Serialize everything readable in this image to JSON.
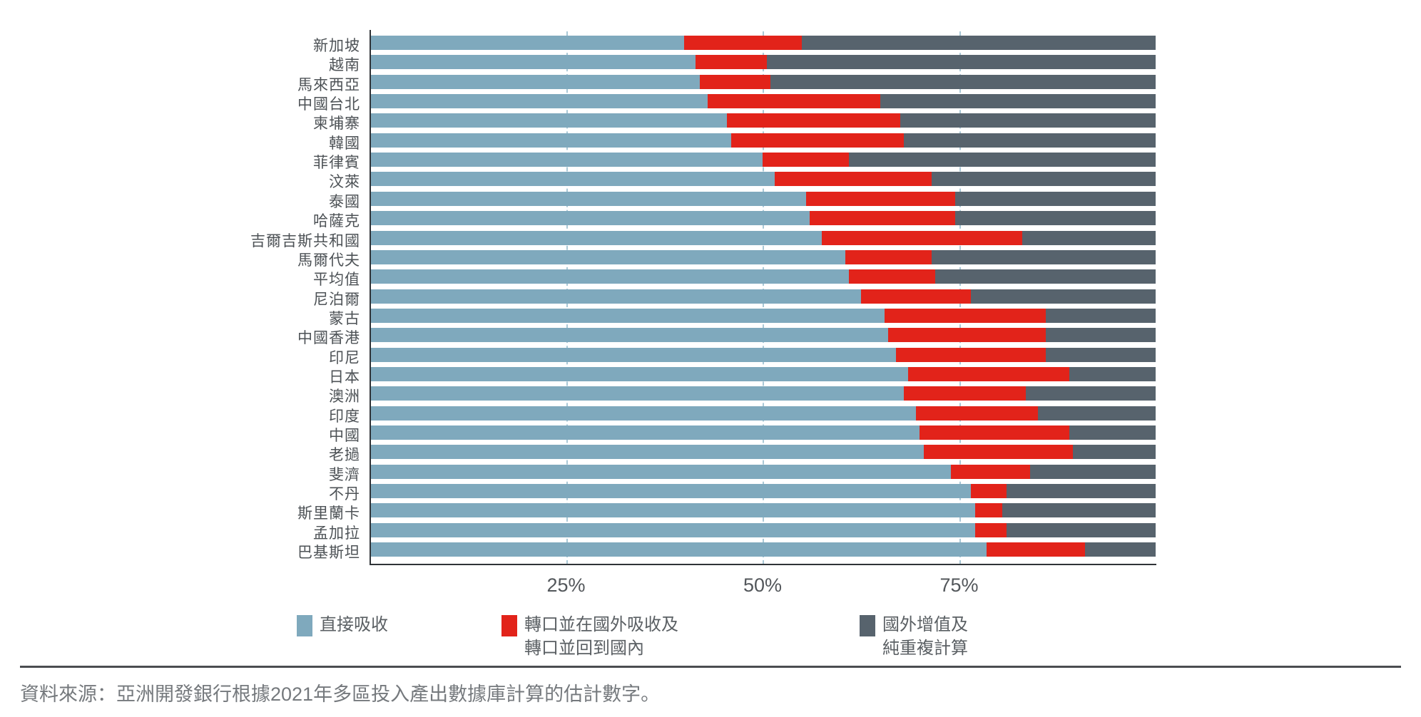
{
  "chart_data": {
    "type": "bar",
    "orientation": "horizontal",
    "stacked": true,
    "unit": "percent",
    "xlim": [
      0,
      100
    ],
    "grid": "vertical dashed gridlines at 25/50/75",
    "legend_position": "bottom",
    "categories": [
      "新加坡",
      "越南",
      "馬來西亞",
      "中國台北",
      "柬埔寨",
      "韓國",
      "菲律賓",
      "汶萊",
      "泰國",
      "哈薩克",
      "吉爾吉斯共和國",
      "馬爾代夫",
      "平均值",
      "尼泊爾",
      "蒙古",
      "中國香港",
      "印尼",
      "日本",
      "澳洲",
      "印度",
      "中國",
      "老撾",
      "斐濟",
      "不丹",
      "斯里蘭卡",
      "孟加拉",
      "巴基斯坦"
    ],
    "series": [
      {
        "name": "直接吸收",
        "color": "#7FA9BD",
        "values": [
          40,
          41.5,
          42,
          43,
          45.5,
          46,
          50,
          51.5,
          55.5,
          56,
          57.5,
          60.5,
          61,
          62.5,
          65.5,
          66,
          67,
          68.5,
          68,
          69.5,
          70,
          70.5,
          74,
          76.5,
          77,
          77,
          78.5
        ]
      },
      {
        "name": "轉口並在國外吸收及轉口並回到國內",
        "color": "#E2231A",
        "values": [
          15,
          9,
          9,
          22,
          22,
          22,
          11,
          20,
          19,
          18.5,
          25.5,
          11,
          11,
          14,
          20.5,
          20,
          19,
          20.5,
          15.5,
          15.5,
          19,
          19,
          10,
          4.5,
          3.5,
          4,
          12.5
        ]
      },
      {
        "name": "國外增值及純重複計算",
        "color": "#57636D",
        "values": [
          45,
          49.5,
          49,
          35,
          32.5,
          32,
          39,
          28.5,
          25.5,
          25.5,
          17,
          28.5,
          28,
          23.5,
          14,
          14,
          14,
          11,
          16.5,
          15,
          11,
          10.5,
          16,
          19,
          19.5,
          19,
          9
        ]
      }
    ],
    "x_ticks": [
      {
        "value": 25,
        "label": "25%"
      },
      {
        "value": 50,
        "label": "50%"
      },
      {
        "value": 75,
        "label": "75%"
      }
    ]
  },
  "legend": {
    "items": [
      {
        "label": "直接吸收",
        "color": "#7FA9BD"
      },
      {
        "label": "轉口並在國外吸收及\n轉口並回到國內",
        "color": "#E2231A"
      },
      {
        "label": "國外增值及\n純重複計算",
        "color": "#57636D"
      }
    ]
  },
  "source_note": "資料來源：亞洲開發銀行根據2021年多區投入產出數據庫計算的估計數字。"
}
